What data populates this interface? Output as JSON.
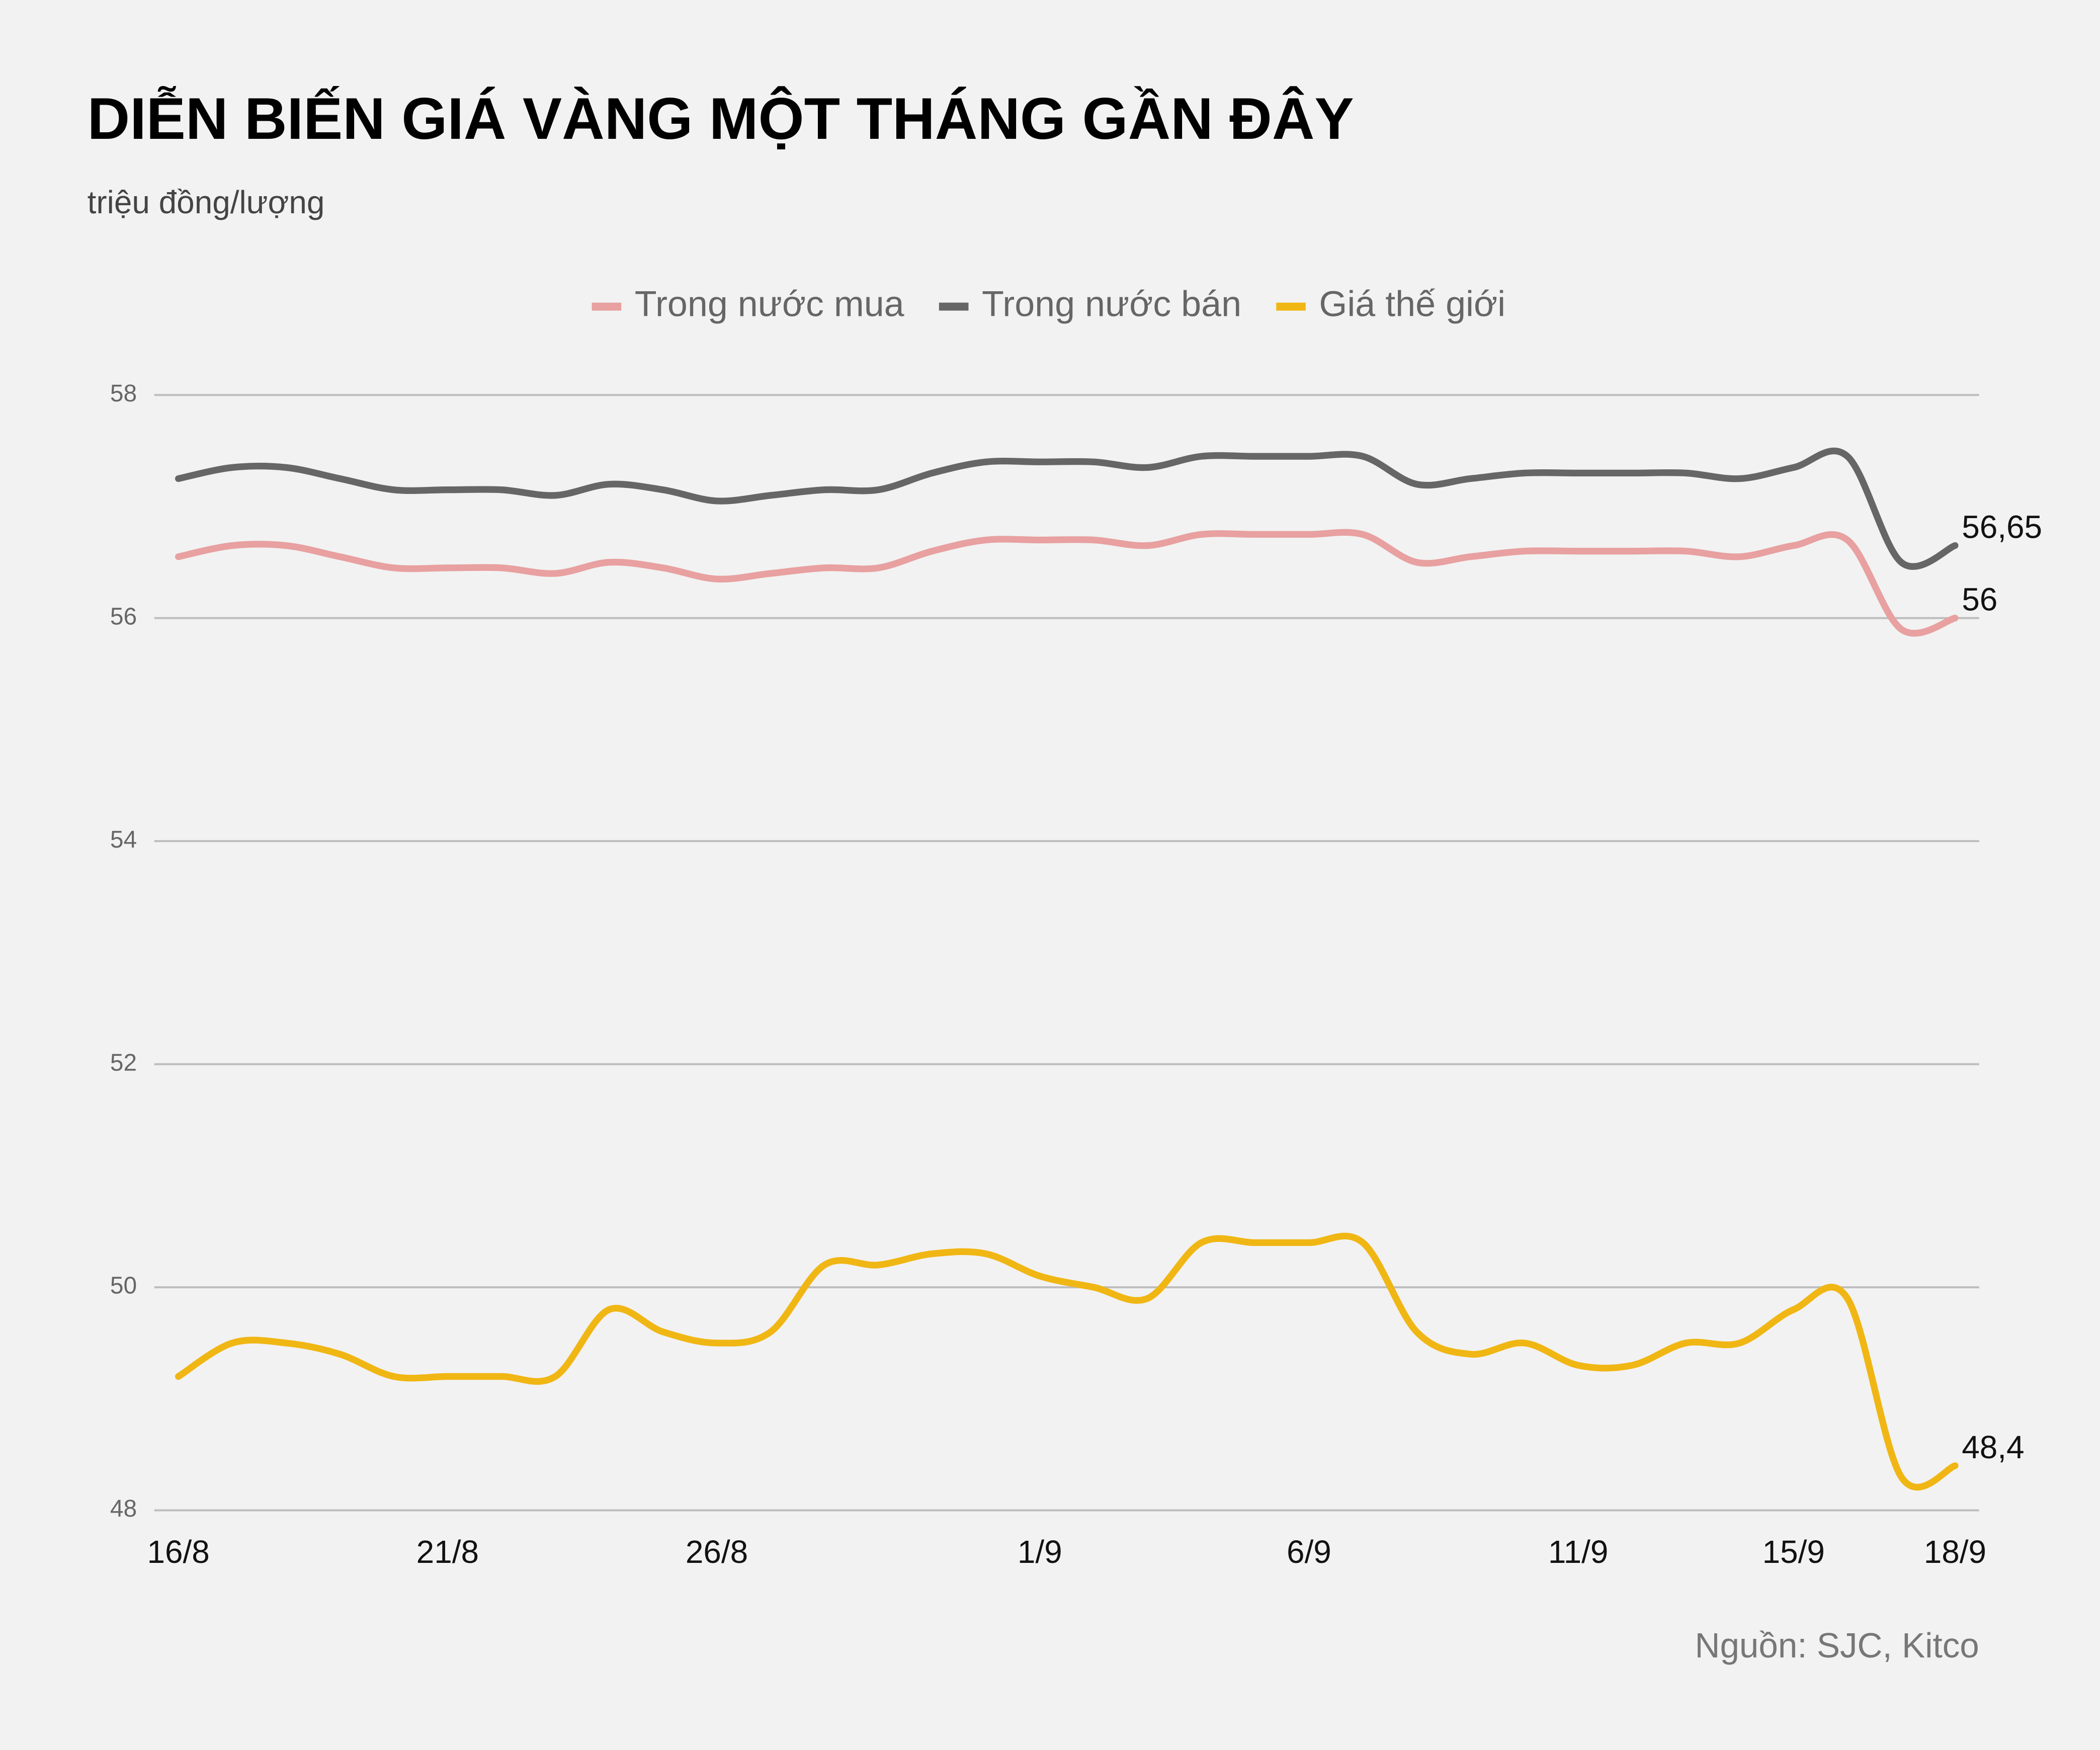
{
  "chart_data": {
    "type": "line",
    "title": "DIỄN BIẾN GIÁ VÀNG MỘT THÁNG GẦN ĐÂY",
    "subtitle": "triệu đồng/lượng",
    "source": "Nguồn: SJC, Kitco",
    "categories": [
      "16/8",
      null,
      null,
      null,
      null,
      "21/8",
      null,
      null,
      null,
      null,
      "26/8",
      null,
      null,
      null,
      null,
      null,
      "1/9",
      null,
      null,
      null,
      null,
      "6/9",
      null,
      null,
      null,
      null,
      "11/9",
      null,
      null,
      null,
      "15/9",
      null,
      null,
      "18/9"
    ],
    "series": [
      {
        "name": "Trong nước mua",
        "color": "#e8a0a0",
        "values": [
          56.55,
          56.65,
          56.65,
          56.55,
          56.45,
          56.45,
          56.45,
          56.4,
          56.5,
          56.45,
          56.35,
          56.4,
          56.45,
          56.45,
          56.6,
          56.7,
          56.7,
          56.7,
          56.65,
          56.75,
          56.75,
          56.75,
          56.75,
          56.5,
          56.55,
          56.6,
          56.6,
          56.6,
          56.6,
          56.55,
          56.65,
          56.7,
          55.9,
          56
        ],
        "value_labels": [
          null,
          null,
          null,
          null,
          null,
          null,
          null,
          null,
          null,
          null,
          null,
          null,
          null,
          null,
          null,
          null,
          null,
          null,
          null,
          null,
          null,
          null,
          null,
          null,
          null,
          null,
          null,
          null,
          null,
          null,
          null,
          null,
          null,
          "56"
        ]
      },
      {
        "name": "Trong nước bán",
        "color": "#666666",
        "values": [
          57.25,
          57.35,
          57.35,
          57.25,
          57.15,
          57.15,
          57.15,
          57.1,
          57.2,
          57.15,
          57.05,
          57.1,
          57.15,
          57.15,
          57.3,
          57.4,
          57.4,
          57.4,
          57.35,
          57.45,
          57.45,
          57.45,
          57.45,
          57.2,
          57.25,
          57.3,
          57.3,
          57.3,
          57.3,
          57.25,
          57.35,
          57.45,
          56.5,
          56.65
        ],
        "value_labels": [
          null,
          null,
          null,
          null,
          null,
          null,
          null,
          null,
          null,
          null,
          null,
          null,
          null,
          null,
          null,
          null,
          null,
          null,
          null,
          null,
          null,
          null,
          null,
          null,
          null,
          null,
          null,
          null,
          null,
          null,
          null,
          null,
          null,
          "56,65"
        ]
      },
      {
        "name": "Giá thế giới",
        "color": "#f0b613",
        "values": [
          49.2,
          49.5,
          49.5,
          49.4,
          49.2,
          49.2,
          49.2,
          49.2,
          49.8,
          49.6,
          49.5,
          49.6,
          50.2,
          50.2,
          50.3,
          50.3,
          50.1,
          50.0,
          49.9,
          50.4,
          50.4,
          50.4,
          50.4,
          49.6,
          49.4,
          49.5,
          49.3,
          49.3,
          49.5,
          49.5,
          49.8,
          49.9,
          48.3,
          48.4
        ],
        "value_labels": [
          null,
          null,
          null,
          null,
          null,
          null,
          null,
          null,
          null,
          null,
          null,
          null,
          null,
          null,
          null,
          null,
          null,
          null,
          null,
          null,
          null,
          null,
          null,
          null,
          null,
          null,
          null,
          null,
          null,
          null,
          null,
          null,
          null,
          "48,4"
        ]
      }
    ],
    "ylim": [
      48,
      58
    ],
    "yticks": [
      48,
      50,
      52,
      54,
      56,
      58
    ],
    "grid": true,
    "legend": "top"
  }
}
